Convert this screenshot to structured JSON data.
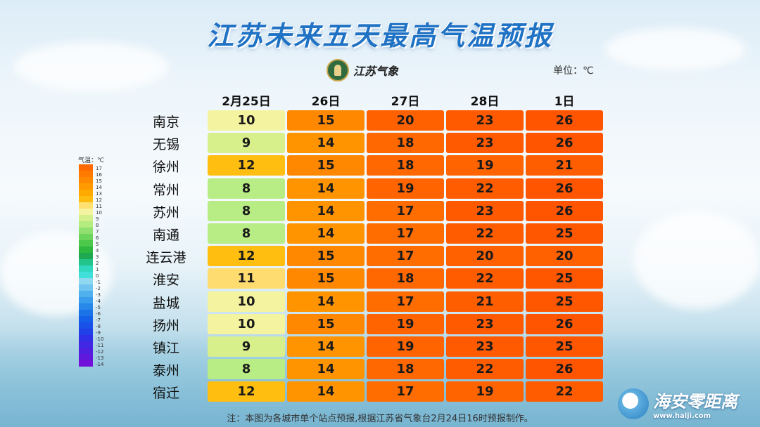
{
  "title": "江苏未来五天最高气温预报",
  "logo_text": "江苏气象",
  "unit": "单位：℃",
  "note": "注：本图为各城市单个站点预报,根据江苏省气象台2月24日16时预报制作。",
  "watermark": {
    "name": "海安零距离",
    "url": "www.halji.com"
  },
  "legend": {
    "title": "气温：℃",
    "labels": [
      "17",
      "16",
      "15",
      "14",
      "13",
      "12",
      "11",
      "10",
      "9",
      "8",
      "7",
      "6",
      "5",
      "4",
      "3",
      "2",
      "1",
      "0",
      "-1",
      "-2",
      "-3",
      "-4",
      "-5",
      "-6",
      "-7",
      "-8",
      "-9",
      "-10",
      "-11",
      "-12",
      "-13",
      "-14"
    ],
    "colors": [
      "#ff6a00",
      "#ff7a00",
      "#ff8a00",
      "#ff9a00",
      "#ffaa00",
      "#ffbc10",
      "#ffe070",
      "#f4f4a0",
      "#d4f08a",
      "#b4ec80",
      "#90e070",
      "#6cd45a",
      "#4cc84a",
      "#2fb840",
      "#1ea850",
      "#22c48c",
      "#30d8c0",
      "#40e0d8",
      "#90d8f0",
      "#70c4f0",
      "#50b0ee",
      "#3a9cec",
      "#2888ea",
      "#1a74e8",
      "#1460e8",
      "#1850e8",
      "#2040e8",
      "#3030e8",
      "#4028e4",
      "#5020e0",
      "#6018dc",
      "#7010d8"
    ]
  },
  "chart_data": {
    "type": "table",
    "columns": [
      "2月25日",
      "26日",
      "27日",
      "28日",
      "1日"
    ],
    "rows": [
      {
        "city": "南京",
        "values": [
          10,
          15,
          20,
          23,
          26
        ]
      },
      {
        "city": "无锡",
        "values": [
          9,
          14,
          18,
          23,
          26
        ]
      },
      {
        "city": "徐州",
        "values": [
          12,
          15,
          18,
          19,
          21
        ]
      },
      {
        "city": "常州",
        "values": [
          8,
          14,
          19,
          22,
          26
        ]
      },
      {
        "city": "苏州",
        "values": [
          8,
          14,
          17,
          23,
          26
        ]
      },
      {
        "city": "南通",
        "values": [
          8,
          14,
          17,
          22,
          25
        ]
      },
      {
        "city": "连云港",
        "values": [
          12,
          15,
          17,
          20,
          20
        ]
      },
      {
        "city": "淮安",
        "values": [
          11,
          15,
          18,
          22,
          25
        ]
      },
      {
        "city": "盐城",
        "values": [
          10,
          14,
          17,
          21,
          25
        ]
      },
      {
        "city": "扬州",
        "values": [
          10,
          15,
          19,
          23,
          26
        ]
      },
      {
        "city": "镇江",
        "values": [
          9,
          14,
          19,
          23,
          25
        ]
      },
      {
        "city": "泰州",
        "values": [
          8,
          14,
          18,
          22,
          26
        ]
      },
      {
        "city": "宿迁",
        "values": [
          12,
          14,
          17,
          19,
          22
        ]
      }
    ]
  },
  "value_colors": {
    "8": "#b8ec84",
    "9": "#d8f08c",
    "10": "#f4f4a0",
    "11": "#ffdc70",
    "12": "#ffbe10",
    "14": "#ff9400",
    "15": "#ff8800",
    "17": "#ff6c00",
    "18": "#ff6800",
    "19": "#ff6400",
    "20": "#ff6000",
    "21": "#ff5e00",
    "22": "#ff5c00",
    "23": "#ff5a00",
    "25": "#ff5600",
    "26": "#ff5400"
  }
}
